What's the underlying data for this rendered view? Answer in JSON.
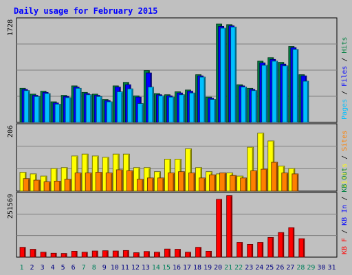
{
  "chart_data": {
    "type": "bar",
    "title": "Daily usage for February 2015",
    "categories": [
      "1",
      "2",
      "3",
      "4",
      "5",
      "6",
      "7",
      "8",
      "9",
      "10",
      "11",
      "12",
      "13",
      "14",
      "15",
      "16",
      "17",
      "18",
      "19",
      "20",
      "21",
      "22",
      "23",
      "24",
      "25",
      "26",
      "27",
      "28",
      "29",
      "30",
      "31"
    ],
    "weekend_days": [
      "1",
      "7",
      "8",
      "14",
      "15",
      "21",
      "22",
      "28",
      "29"
    ],
    "panels": [
      {
        "id": "top",
        "max_label": "1728",
        "ylim": [
          0,
          1728
        ],
        "legend": [
          "Pages",
          "/",
          "Files",
          "/",
          "Hits"
        ],
        "series": [
          {
            "name": "Hits",
            "color": "#008040",
            "values": [
              580,
              480,
              530,
              350,
              460,
              620,
              510,
              480,
              390,
              620,
              680,
              450,
              880,
              490,
              470,
              520,
              550,
              810,
              430,
              1670,
              1660,
              640,
              580,
              1040,
              1100,
              1020,
              1290,
              810,
              0,
              0,
              0
            ]
          },
          {
            "name": "Files",
            "color": "#0000ff",
            "values": [
              560,
              460,
              510,
              330,
              440,
              600,
              490,
              460,
              370,
              600,
              640,
              430,
              840,
              470,
              450,
              500,
              530,
              790,
              410,
              1630,
              1640,
              620,
              560,
              1010,
              1070,
              990,
              1270,
              790,
              0,
              0,
              0
            ]
          },
          {
            "name": "Pages",
            "color": "#00c0ff",
            "values": [
              540,
              440,
              490,
              310,
              420,
              580,
              470,
              440,
              350,
              520,
              570,
              320,
              600,
              450,
              430,
              470,
              500,
              770,
              390,
              1600,
              1620,
              600,
              540,
              970,
              1040,
              960,
              1240,
              700,
              0,
              0,
              0
            ]
          }
        ]
      },
      {
        "id": "middle",
        "max_label": "206",
        "ylim": [
          0,
          206
        ],
        "legend": [
          "Visits",
          "/",
          "Sites"
        ],
        "series": [
          {
            "name": "Visits",
            "color": "#ffff00",
            "values": [
              60,
              55,
              48,
              72,
              75,
              112,
              118,
              112,
              108,
              118,
              118,
              75,
              75,
              62,
              102,
              102,
              135,
              75,
              62,
              55,
              58,
              48,
              140,
              185,
              160,
              80,
              72,
              0,
              0,
              0,
              0
            ]
          },
          {
            "name": "Sites",
            "color": "#ff8000",
            "values": [
              40,
              35,
              30,
              32,
              38,
              58,
              58,
              60,
              58,
              68,
              65,
              38,
              42,
              42,
              58,
              62,
              58,
              42,
              52,
              58,
              50,
              42,
              65,
              70,
              92,
              58,
              55,
              0,
              0,
              0,
              0
            ]
          }
        ]
      },
      {
        "id": "bottom",
        "max_label": "251569",
        "ylim": [
          0,
          251569
        ],
        "legend": [
          "KB",
          "F",
          "/",
          "KB",
          "In",
          "/",
          "KB",
          "Out"
        ],
        "series": [
          {
            "name": "KB F",
            "color": "#ff0000",
            "values": [
              40000,
              32000,
              20000,
              16000,
              15000,
              24000,
              20000,
              25000,
              26000,
              25000,
              27000,
              18000,
              23000,
              20000,
              33000,
              32000,
              20000,
              40000,
              24000,
              235000,
              250000,
              60000,
              52000,
              60000,
              80000,
              100000,
              120000,
              75000,
              0,
              0,
              0
            ]
          }
        ]
      }
    ],
    "colors": {
      "background": "#c0c0c0",
      "title": "#0000ff",
      "panel_line": "#808080",
      "weekday_label": "#000080",
      "weekend_label": "#00805c"
    }
  }
}
